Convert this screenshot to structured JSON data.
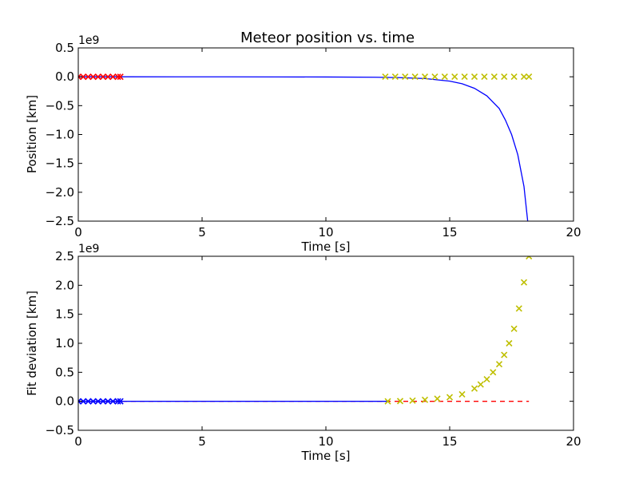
{
  "chart_data": [
    {
      "type": "line",
      "title": "Meteor position vs. time",
      "xlabel": "Time [s]",
      "ylabel": "Position [km]",
      "offset_label": "1e9",
      "xlim": [
        0,
        20
      ],
      "ylim": [
        -2.5,
        0.5
      ],
      "xticks": [
        "0",
        "5",
        "10",
        "15",
        "20"
      ],
      "yticks": [
        "0.5",
        "0.0",
        "−0.5",
        "−1.0",
        "−1.5",
        "−2.0",
        "−2.5"
      ],
      "grid": false,
      "series": [
        {
          "style": "line",
          "color": "#0000ff",
          "x": [
            0,
            2,
            4,
            6,
            8,
            10,
            12,
            13,
            14,
            15,
            15.5,
            16,
            16.5,
            17,
            17.25,
            17.5,
            17.75,
            18,
            18.15
          ],
          "y": [
            0,
            -0.0003,
            -0.0008,
            -0.0015,
            -0.0025,
            -0.004,
            -0.008,
            -0.015,
            -0.03,
            -0.075,
            -0.12,
            -0.2,
            -0.33,
            -0.55,
            -0.75,
            -1.0,
            -1.35,
            -1.9,
            -2.5
          ]
        },
        {
          "style": "markers",
          "marker": "x",
          "color": "#ff0000",
          "x": [
            0.0,
            0.2,
            0.4,
            0.6,
            0.8,
            1.0,
            1.2,
            1.4,
            1.6,
            1.7
          ],
          "y": [
            0,
            0,
            0,
            0,
            0,
            0,
            0,
            0,
            0,
            0
          ]
        },
        {
          "style": "markers",
          "marker": "x",
          "color": "#bfbf00",
          "x": [
            12.4,
            12.8,
            13.2,
            13.6,
            14.0,
            14.4,
            14.8,
            15.2,
            15.6,
            16.0,
            16.4,
            16.8,
            17.2,
            17.6,
            18.0,
            18.2
          ],
          "y": [
            0.001,
            0.001,
            0.001,
            0.001,
            0.001,
            0.001,
            0.001,
            0.001,
            0.001,
            0.001,
            0.001,
            0.001,
            0.001,
            0.001,
            0.001,
            0.001
          ]
        }
      ]
    },
    {
      "type": "line",
      "title": "",
      "xlabel": "Time [s]",
      "ylabel": "Fit deviation [km]",
      "offset_label": "1e9",
      "xlim": [
        0,
        20
      ],
      "ylim": [
        -0.5,
        2.5
      ],
      "xticks": [
        "0",
        "5",
        "10",
        "15",
        "20"
      ],
      "yticks": [
        "2.5",
        "2.0",
        "1.5",
        "1.0",
        "0.5",
        "0.0",
        "−0.5"
      ],
      "grid": false,
      "series": [
        {
          "style": "dashed",
          "color": "#ff0000",
          "x": [
            0,
            18.2
          ],
          "y": [
            0,
            0
          ]
        },
        {
          "style": "line",
          "color": "#0000ff",
          "x": [
            0,
            2,
            4,
            6,
            8,
            10,
            12,
            12.5
          ],
          "y": [
            0,
            0,
            0,
            0,
            0,
            0,
            0,
            0
          ]
        },
        {
          "style": "markers",
          "marker": "x",
          "color": "#0000ff",
          "x": [
            0.0,
            0.2,
            0.4,
            0.6,
            0.8,
            1.0,
            1.2,
            1.4,
            1.6,
            1.7
          ],
          "y": [
            0,
            0,
            0,
            0,
            0,
            0,
            0,
            0,
            0,
            0
          ]
        },
        {
          "style": "markers",
          "marker": "x",
          "color": "#bfbf00",
          "x": [
            12.5,
            13.0,
            13.5,
            14.0,
            14.5,
            15.0,
            15.5,
            16.0,
            16.25,
            16.5,
            16.75,
            17.0,
            17.2,
            17.4,
            17.6,
            17.8,
            18.0,
            18.2
          ],
          "y": [
            0.0,
            0.004,
            0.012,
            0.025,
            0.045,
            0.07,
            0.12,
            0.22,
            0.29,
            0.38,
            0.5,
            0.64,
            0.8,
            1.0,
            1.25,
            1.6,
            2.05,
            2.5
          ]
        }
      ]
    }
  ]
}
